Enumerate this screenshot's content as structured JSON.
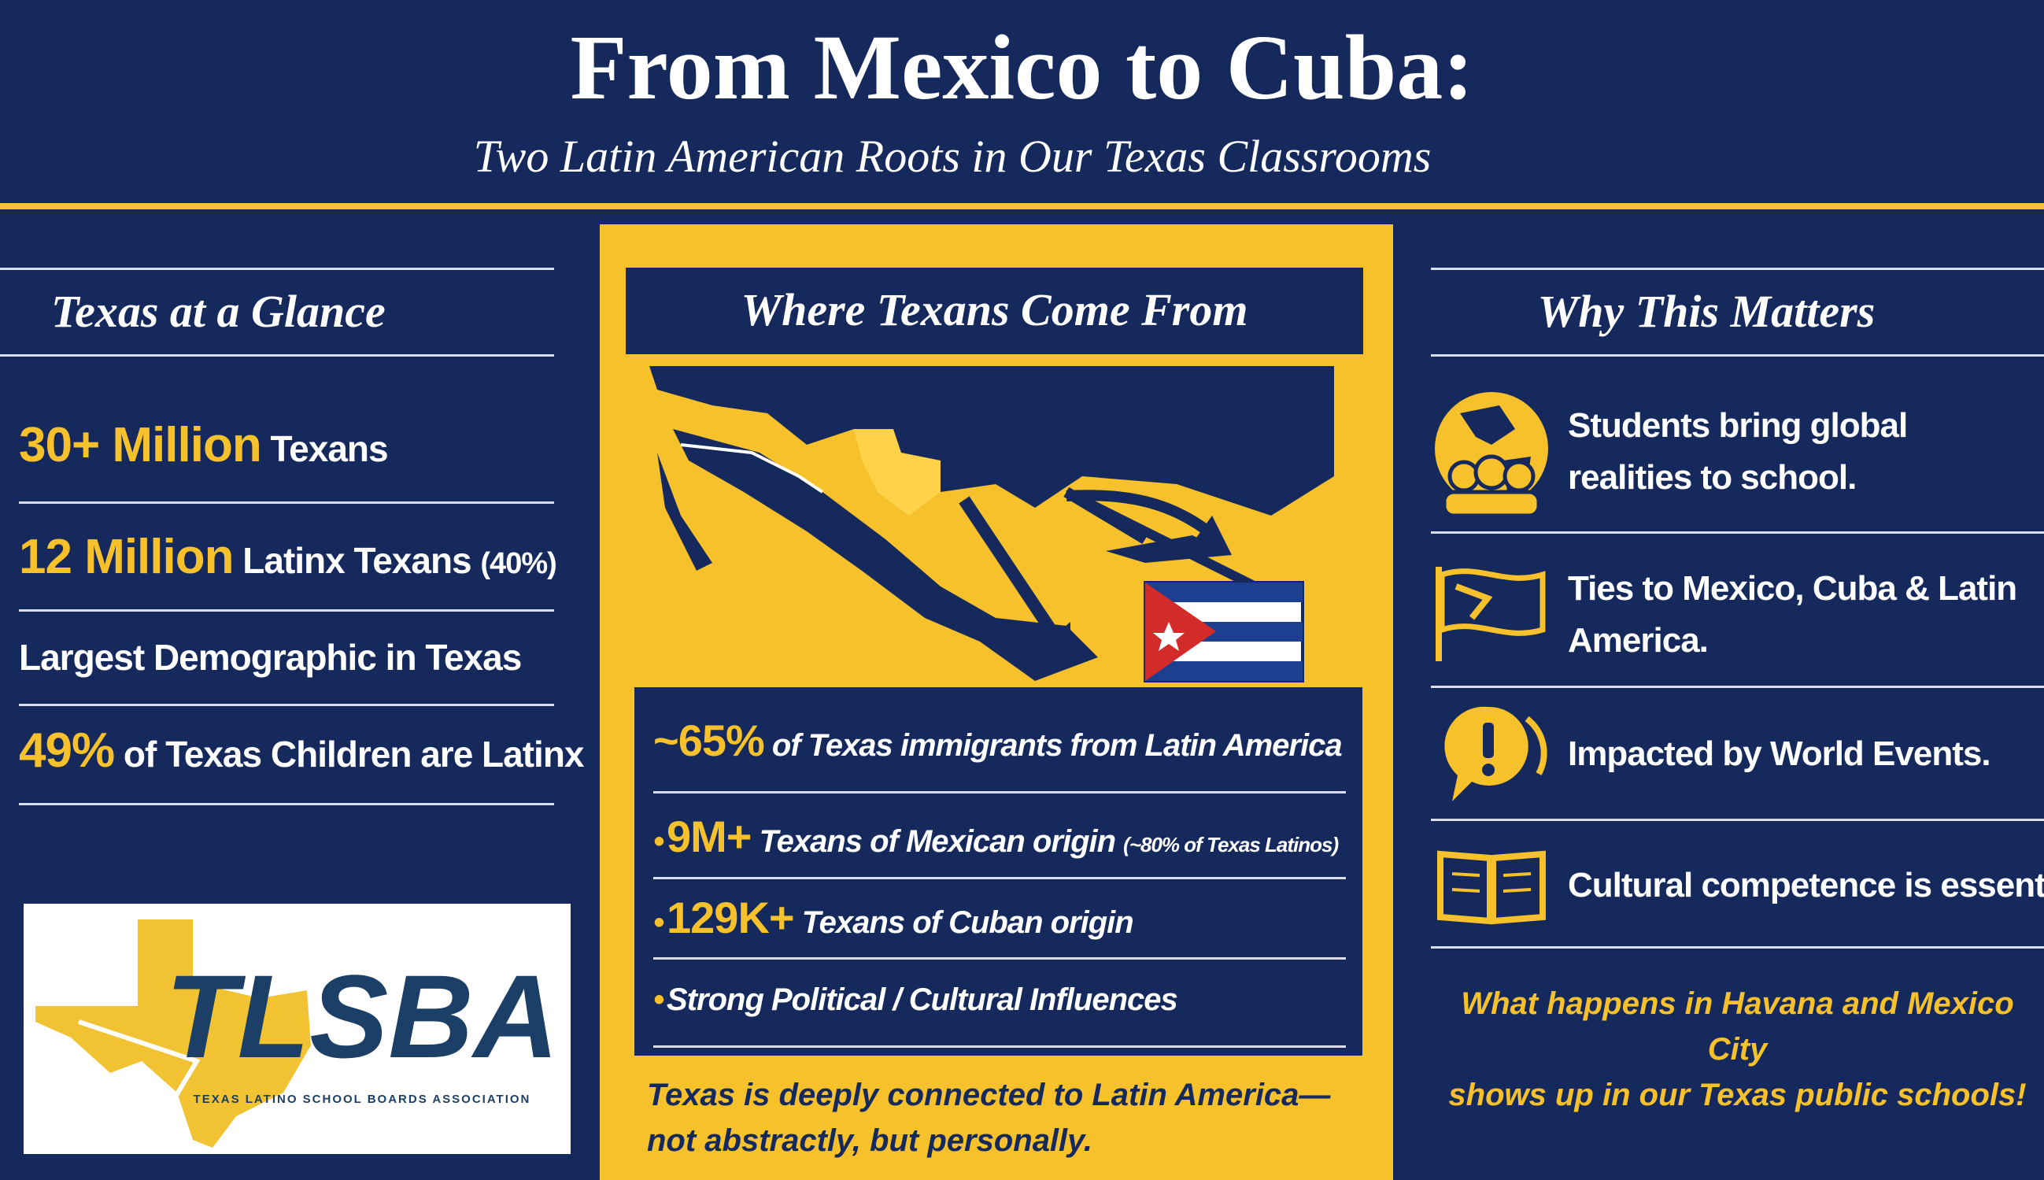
{
  "header": {
    "title": "From Mexico to Cuba:",
    "subtitle": "Two Latin American Roots in Our Texas Classrooms"
  },
  "glance": {
    "heading": "Texas at a Glance",
    "items": [
      {
        "highlight": "30+ Million",
        "text": "Texans"
      },
      {
        "highlight": "12 Million",
        "text": "Latinx Texans",
        "note": "(40%)"
      },
      {
        "text": "Largest Demographic in Texas"
      },
      {
        "highlight": "49%",
        "text": "of Texas Children are Latinx"
      }
    ]
  },
  "logo": {
    "name": "TLSBA",
    "tagline": "TEXAS LATINO SCHOOL BOARDS ASSOCIATION"
  },
  "origins": {
    "heading": "Where Texans Come From",
    "items": [
      {
        "highlight": "~65%",
        "text": "of Texas immigrants from Latin America"
      },
      {
        "highlight": "9M+",
        "text": "Texans of Mexican origin",
        "note": "(~80% of Texas Latinos)"
      },
      {
        "highlight": "129K+",
        "text": "Texans of Cuban origin"
      },
      {
        "text": "Strong Political / Cultural Influences"
      }
    ],
    "footer": [
      "Texas is deeply connected to Latin America—",
      "not abstractly, but personally."
    ]
  },
  "matters": {
    "heading": "Why This Matters",
    "items": [
      "Students bring global realities to school.",
      "Ties to Mexico, Cuba & Latin America.",
      "Impacted by World Events.",
      "Cultural competence is essential."
    ],
    "closing": [
      "What happens in Havana and Mexico City",
      "shows up in our Texas public schools!"
    ]
  }
}
